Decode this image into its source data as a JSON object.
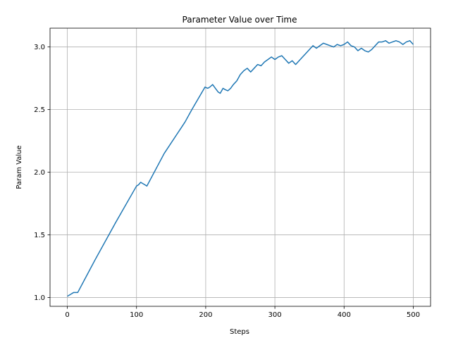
{
  "chart_data": {
    "type": "line",
    "title": "Parameter Value over Time",
    "xlabel": "Steps",
    "ylabel": "Param Value",
    "xlim": [
      -25,
      525
    ],
    "ylim": [
      0.93,
      3.15
    ],
    "xticks": [
      0,
      100,
      200,
      300,
      400,
      500
    ],
    "yticks": [
      1.0,
      1.5,
      2.0,
      2.5,
      3.0
    ],
    "xtick_labels": [
      "0",
      "100",
      "200",
      "300",
      "400",
      "500"
    ],
    "ytick_labels": [
      "1.0",
      "1.5",
      "2.0",
      "2.5",
      "3.0"
    ],
    "grid": true,
    "legend": "none",
    "series": [
      {
        "color": "#1f77b4",
        "points": [
          [
            0,
            1.01
          ],
          [
            3,
            1.02
          ],
          [
            6,
            1.03
          ],
          [
            9,
            1.04
          ],
          [
            12,
            1.04
          ],
          [
            15,
            1.04
          ],
          [
            40,
            1.3
          ],
          [
            70,
            1.6
          ],
          [
            100,
            1.89
          ],
          [
            103,
            1.9
          ],
          [
            106,
            1.92
          ],
          [
            109,
            1.91
          ],
          [
            112,
            1.9
          ],
          [
            115,
            1.89
          ],
          [
            140,
            2.15
          ],
          [
            170,
            2.4
          ],
          [
            180,
            2.5
          ],
          [
            199,
            2.68
          ],
          [
            203,
            2.67
          ],
          [
            206,
            2.68
          ],
          [
            210,
            2.7
          ],
          [
            214,
            2.67
          ],
          [
            218,
            2.64
          ],
          [
            221,
            2.63
          ],
          [
            225,
            2.67
          ],
          [
            228,
            2.66
          ],
          [
            232,
            2.65
          ],
          [
            236,
            2.67
          ],
          [
            240,
            2.7
          ],
          [
            245,
            2.73
          ],
          [
            250,
            2.78
          ],
          [
            255,
            2.81
          ],
          [
            260,
            2.83
          ],
          [
            265,
            2.8
          ],
          [
            270,
            2.83
          ],
          [
            275,
            2.86
          ],
          [
            280,
            2.85
          ],
          [
            285,
            2.88
          ],
          [
            290,
            2.9
          ],
          [
            295,
            2.92
          ],
          [
            300,
            2.9
          ],
          [
            305,
            2.92
          ],
          [
            310,
            2.93
          ],
          [
            315,
            2.9
          ],
          [
            320,
            2.87
          ],
          [
            325,
            2.89
          ],
          [
            330,
            2.86
          ],
          [
            335,
            2.89
          ],
          [
            340,
            2.92
          ],
          [
            345,
            2.95
          ],
          [
            350,
            2.98
          ],
          [
            355,
            3.01
          ],
          [
            360,
            2.99
          ],
          [
            365,
            3.01
          ],
          [
            370,
            3.03
          ],
          [
            375,
            3.02
          ],
          [
            380,
            3.01
          ],
          [
            385,
            3.0
          ],
          [
            390,
            3.02
          ],
          [
            395,
            3.01
          ],
          [
            400,
            3.02
          ],
          [
            405,
            3.04
          ],
          [
            410,
            3.01
          ],
          [
            415,
            3.0
          ],
          [
            420,
            2.97
          ],
          [
            425,
            2.99
          ],
          [
            430,
            2.97
          ],
          [
            435,
            2.96
          ],
          [
            440,
            2.98
          ],
          [
            445,
            3.01
          ],
          [
            450,
            3.04
          ],
          [
            455,
            3.04
          ],
          [
            460,
            3.05
          ],
          [
            465,
            3.03
          ],
          [
            470,
            3.04
          ],
          [
            475,
            3.05
          ],
          [
            480,
            3.04
          ],
          [
            485,
            3.02
          ],
          [
            490,
            3.04
          ],
          [
            495,
            3.05
          ],
          [
            500,
            3.02
          ]
        ]
      }
    ]
  }
}
